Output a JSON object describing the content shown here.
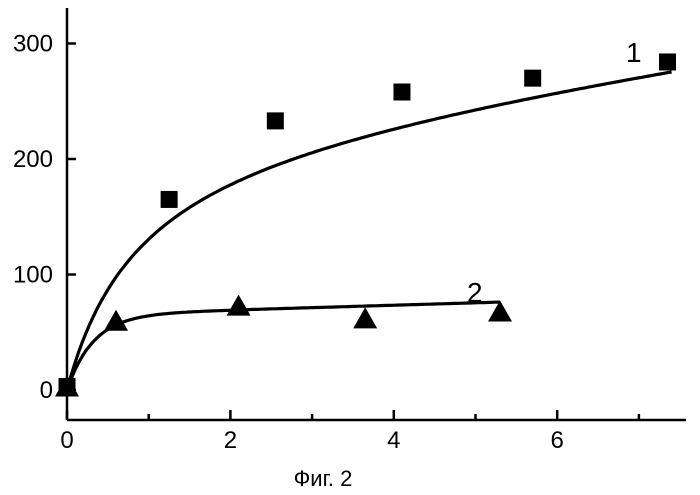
{
  "chart_data": {
    "type": "scatter",
    "title": "",
    "xlabel": "",
    "ylabel": "",
    "caption": "Фиг. 2",
    "xlim": [
      0,
      7.4
    ],
    "ylim": [
      -20,
      330
    ],
    "x_ticks": [
      0,
      2,
      4,
      6
    ],
    "x_minor_ticks": [
      1,
      3,
      5,
      7
    ],
    "y_ticks": [
      0,
      100,
      200,
      300
    ],
    "grid": false,
    "series": [
      {
        "name": "1",
        "marker": "square",
        "color": "#000000",
        "points": [
          {
            "x": 0.0,
            "y": 3
          },
          {
            "x": 1.25,
            "y": 165
          },
          {
            "x": 2.55,
            "y": 233
          },
          {
            "x": 4.1,
            "y": 258
          },
          {
            "x": 5.7,
            "y": 270
          },
          {
            "x": 7.35,
            "y": 284
          }
        ]
      },
      {
        "name": "2",
        "marker": "triangle",
        "color": "#000000",
        "points": [
          {
            "x": 0.0,
            "y": 3
          },
          {
            "x": 0.6,
            "y": 60
          },
          {
            "x": 2.1,
            "y": 73
          },
          {
            "x": 3.65,
            "y": 62
          },
          {
            "x": 5.3,
            "y": 68
          }
        ]
      }
    ]
  }
}
